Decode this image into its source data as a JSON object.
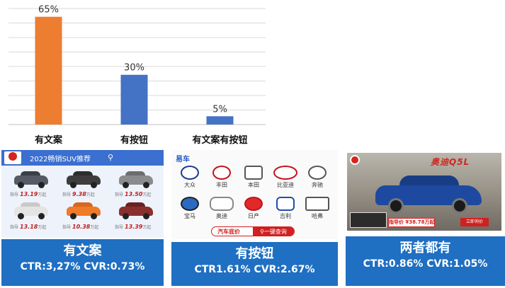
{
  "chart_data": {
    "type": "bar",
    "categories": [
      "有文案",
      "有按钮",
      "有文案有按钮"
    ],
    "values": [
      65,
      30,
      5
    ],
    "data_labels": [
      "65%",
      "30%",
      "5%"
    ],
    "colors": [
      "#ed7d31",
      "#4472c4",
      "#4472c4"
    ],
    "ylim": [
      0,
      70
    ],
    "grid": true,
    "title": "",
    "xlabel": "",
    "ylabel": ""
  },
  "panels": [
    {
      "title": "有文案",
      "metrics": "CTR:3,27% CVR:0.73%",
      "ad": {
        "header": "2022畅销SUV推荐",
        "search_icon": "search-icon",
        "prices": [
          "13.19",
          "9.38",
          "13.50",
          "13.18",
          "10.38",
          "13.39"
        ],
        "price_unit": "万起",
        "price_prefix": "指导"
      }
    },
    {
      "title": "有按钮",
      "metrics": "CTR1.61% CVR:2.67%",
      "ad": {
        "logo": "易车",
        "brands": [
          "大众",
          "丰田",
          "本田",
          "比亚迪",
          "奔驰",
          "宝马",
          "奥迪",
          "日产",
          "吉利",
          "哈弗"
        ],
        "brand_marks": [
          "",
          "TOYOTA",
          "",
          "BYD",
          "",
          "",
          "",
          "NISSAN",
          "",
          ""
        ],
        "left_label": "汽车底价",
        "button_label": "一键查询"
      }
    },
    {
      "title": "两者都有",
      "metrics": "CTR:0.86% CVR:1.05%",
      "ad": {
        "headline": "奥迪Q5L",
        "price_tag": "指导价 ¥38.78万起",
        "button_label": "立即询价"
      }
    }
  ]
}
